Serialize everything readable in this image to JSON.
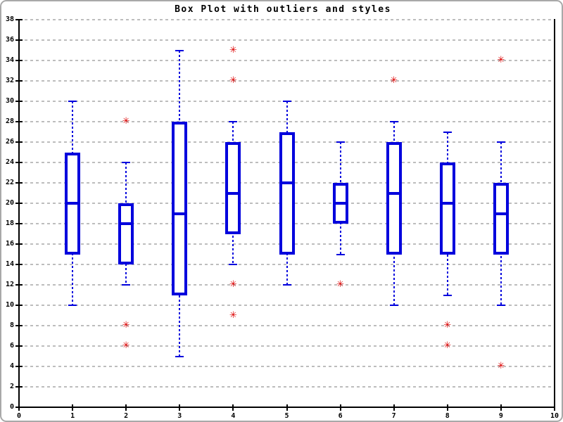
{
  "chart_data": {
    "type": "boxplot",
    "title": "Box Plot with outliers and styles",
    "xlabel": "",
    "ylabel": "",
    "xlim": [
      0,
      10
    ],
    "ylim": [
      0,
      38
    ],
    "x_ticks": [
      0,
      1,
      2,
      3,
      4,
      5,
      6,
      7,
      8,
      9,
      10
    ],
    "y_ticks": [
      0,
      2,
      4,
      6,
      8,
      10,
      12,
      14,
      16,
      18,
      20,
      22,
      24,
      26,
      28,
      30,
      32,
      34,
      36,
      38
    ],
    "grid": "horizontal-dashed",
    "legend": "none",
    "marker_glyph": "✳",
    "colors": {
      "box": "#0000dd",
      "outlier": "#dd0000",
      "grid": "#bdbdbd",
      "axis": "#000000",
      "background": "#ffffff"
    },
    "boxes": [
      {
        "x": 1,
        "whisker_low": 10,
        "q1": 15,
        "median": 20,
        "q3": 25,
        "whisker_high": 30,
        "outliers": []
      },
      {
        "x": 2,
        "whisker_low": 12,
        "q1": 14,
        "median": 18,
        "q3": 20,
        "whisker_high": 24,
        "outliers": [
          28,
          8,
          6
        ]
      },
      {
        "x": 3,
        "whisker_low": 5,
        "q1": 11,
        "median": 19,
        "q3": 28,
        "whisker_high": 35,
        "outliers": []
      },
      {
        "x": 4,
        "whisker_low": 14,
        "q1": 17,
        "median": 21,
        "q3": 26,
        "whisker_high": 28,
        "outliers": [
          35,
          32,
          12,
          9
        ]
      },
      {
        "x": 5,
        "whisker_low": 12,
        "q1": 15,
        "median": 22,
        "q3": 27,
        "whisker_high": 30,
        "outliers": []
      },
      {
        "x": 6,
        "whisker_low": 15,
        "q1": 18,
        "median": 20,
        "q3": 22,
        "whisker_high": 26,
        "outliers": [
          12
        ]
      },
      {
        "x": 7,
        "whisker_low": 10,
        "q1": 15,
        "median": 21,
        "q3": 26,
        "whisker_high": 28,
        "outliers": [
          32
        ]
      },
      {
        "x": 8,
        "whisker_low": 11,
        "q1": 15,
        "median": 20,
        "q3": 24,
        "whisker_high": 27,
        "outliers": [
          8,
          6
        ]
      },
      {
        "x": 9,
        "whisker_low": 10,
        "q1": 15,
        "median": 19,
        "q3": 22,
        "whisker_high": 26,
        "outliers": [
          34,
          4
        ]
      }
    ]
  }
}
